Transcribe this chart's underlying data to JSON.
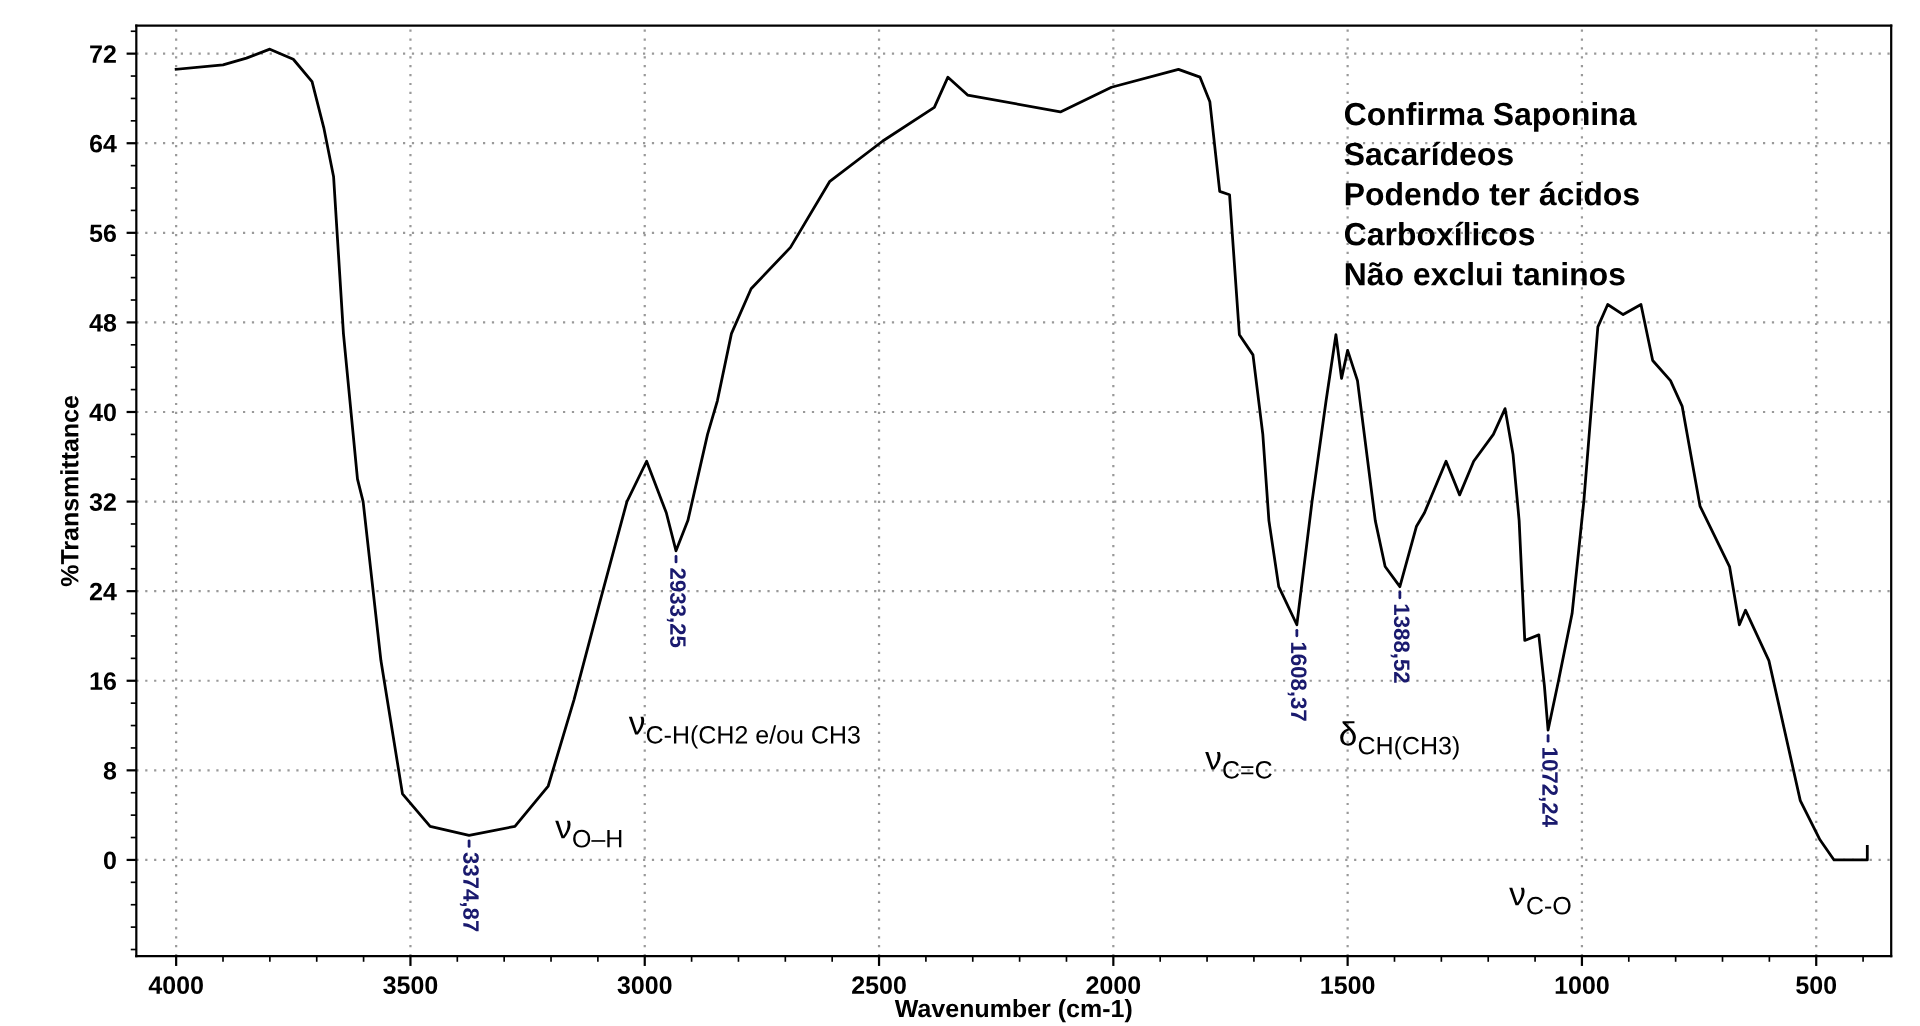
{
  "chart_data": {
    "type": "line",
    "xlabel": "Wavenumber (cm-1)",
    "ylabel": "%Transmittance",
    "xlim": [
      4085,
      340
    ],
    "ylim": [
      -8.6,
      74.5
    ],
    "xticks": [
      4000,
      3500,
      3000,
      2500,
      2000,
      1500,
      1000,
      500
    ],
    "yticks": [
      0,
      8,
      16,
      24,
      32,
      40,
      48,
      56,
      64,
      72
    ],
    "grid": true,
    "legend": false,
    "marker": "none",
    "line_style": "solid",
    "series": [
      {
        "color": "#000000",
        "x": [
          4000,
          3900,
          3850,
          3800,
          3750,
          3710,
          3685,
          3664,
          3643,
          3613,
          3601,
          3563,
          3517,
          3458,
          3374.87,
          3277,
          3206,
          3151,
          3096,
          3038,
          2996,
          2954,
          2933.25,
          2908,
          2866,
          2845,
          2815,
          2773,
          2689,
          2605,
          2492,
          2382,
          2353,
          2311,
          2113,
          2004,
          1861,
          1815,
          1794,
          1773,
          1752,
          1731,
          1702,
          1681,
          1668,
          1647,
          1608.37,
          1576,
          1546,
          1525,
          1513,
          1500,
          1479,
          1441,
          1420,
          1388.52,
          1353,
          1336,
          1290,
          1261,
          1231,
          1189,
          1164,
          1147,
          1134,
          1122,
          1092,
          1080,
          1072.24,
          1050,
          1021,
          996,
          966,
          945,
          912,
          874,
          849,
          811,
          786,
          748,
          685,
          664,
          651,
          601,
          534,
          492,
          462,
          391,
          391
        ],
        "values": [
          70.6,
          71,
          71.6,
          72.4,
          71.5,
          69.5,
          65.4,
          61,
          47,
          34,
          32,
          17.8,
          5.9,
          3.0,
          2.2,
          3.0,
          6.6,
          14.3,
          23,
          32,
          35.6,
          31,
          27.6,
          30.3,
          38,
          41,
          47,
          51,
          54.7,
          60.6,
          64.2,
          67.2,
          69.9,
          68.3,
          66.8,
          69,
          70.6,
          69.9,
          67.7,
          59.7,
          59.4,
          46.9,
          45.1,
          38,
          30.3,
          24.4,
          21,
          32,
          41,
          46.9,
          43,
          45.5,
          42.8,
          30.3,
          26.2,
          24.4,
          29.8,
          31,
          35.6,
          32.6,
          35.6,
          38,
          40.3,
          36.2,
          30.3,
          19.6,
          20.1,
          15.5,
          11.6,
          16,
          22,
          32,
          47.6,
          49.6,
          48.7,
          49.6,
          44.6,
          42.8,
          40.5,
          31.6,
          26.2,
          21,
          22.3,
          17.8,
          5.3,
          1.8,
          0,
          0,
          1.2
        ]
      }
    ],
    "annotations": [
      {
        "text": "3374,87",
        "x": 3374.87,
        "y": 2.2
      },
      {
        "text": "2933,25",
        "x": 2933.25,
        "y": 27.6
      },
      {
        "text": "1608,37",
        "x": 1608.37,
        "y": 21
      },
      {
        "text": "1388,52",
        "x": 1388.52,
        "y": 24.4
      },
      {
        "text": "1072,24",
        "x": 1072.24,
        "y": 11.6
      },
      "ν$_{O–H}$",
      "ν$_{C-H(CH2 e/ou CH3}$",
      "ν$_{C=C}$",
      "δ$_{CH(CH3)}$",
      "ν$_{C-O}$",
      "Confirma Saponina",
      "Sacarídeos",
      "Podendo ter ácidos",
      "Carboxílicos",
      "Não exclui taninos"
    ]
  }
}
